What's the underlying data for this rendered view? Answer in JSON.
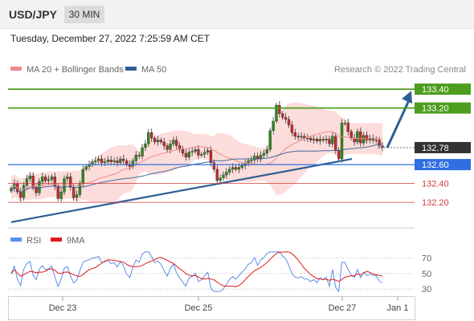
{
  "header": {
    "symbol": "USD/JPY",
    "timeframe": "30 MIN",
    "datetime": "Tuesday, December 27, 2022 7:25:59 AM CET"
  },
  "main_legend": [
    {
      "name": "MA 20 + Bollinger Bands",
      "color": "#f08a8a"
    },
    {
      "name": "MA 50",
      "color": "#2f5e96"
    }
  ],
  "credit": "Research © 2022 Trading Central",
  "rsi_legend": [
    {
      "name": "RSI",
      "color": "#5b8ee6"
    },
    {
      "name": "9MA",
      "color": "#e01a1a"
    }
  ],
  "chart_data": [
    {
      "type": "candlestick",
      "ylim": [
        131.92,
        133.52
      ],
      "x_ticks": [
        "Dec 23",
        "Dec 25",
        "Dec 27",
        "Jan 1"
      ],
      "levels": [
        {
          "value": 133.4,
          "label": "133.40",
          "kind": "resistance",
          "color": "#4e9d1e"
        },
        {
          "value": 133.2,
          "label": "133.20",
          "kind": "resistance",
          "color": "#4e9d1e"
        },
        {
          "value": 132.78,
          "label": "132.78",
          "kind": "last-price",
          "color": "#333333"
        },
        {
          "value": 132.6,
          "label": "132.60",
          "kind": "pivot",
          "color": "#2f6fe0"
        },
        {
          "value": 132.4,
          "label": "132.40",
          "kind": "support",
          "color": "#d23b3b"
        },
        {
          "value": 132.2,
          "label": "132.20",
          "kind": "support",
          "color": "#d23b3b"
        }
      ],
      "trendline": {
        "color": "#2f5e96",
        "from": 131.99,
        "to": 132.66
      },
      "projection": {
        "color": "#2f5e96",
        "from": 132.78,
        "to": 133.4
      },
      "close": [
        132.35,
        132.4,
        132.31,
        132.25,
        132.38,
        132.45,
        132.48,
        132.36,
        132.3,
        132.42,
        132.47,
        132.43,
        132.44,
        132.47,
        132.37,
        132.24,
        132.31,
        132.45,
        132.47,
        132.36,
        132.25,
        132.28,
        132.4,
        132.55,
        132.58,
        132.6,
        132.63,
        132.64,
        132.66,
        132.62,
        132.63,
        132.65,
        132.63,
        132.64,
        132.62,
        132.66,
        132.64,
        132.6,
        132.58,
        132.64,
        132.7,
        132.69,
        132.78,
        132.82,
        132.94,
        132.88,
        132.84,
        132.86,
        132.84,
        132.8,
        132.76,
        132.82,
        132.86,
        132.8,
        132.76,
        132.72,
        132.68,
        132.73,
        132.74,
        132.76,
        132.7,
        132.71,
        132.73,
        132.75,
        132.62,
        132.55,
        132.43,
        132.46,
        132.49,
        132.52,
        132.55,
        132.57,
        132.55,
        132.57,
        132.59,
        132.61,
        132.64,
        132.65,
        132.69,
        132.66,
        132.7,
        132.72,
        132.76,
        132.96,
        133.06,
        133.23,
        133.14,
        133.1,
        133.08,
        133.02,
        132.94,
        132.9,
        132.89,
        132.9,
        132.88,
        132.88,
        132.86,
        132.87,
        132.85,
        132.87,
        132.86,
        132.87,
        132.82,
        132.9,
        132.75,
        132.66,
        133.04,
        133.04,
        132.95,
        132.88,
        132.84,
        132.95,
        132.83,
        132.91,
        132.86,
        132.88,
        132.86,
        132.86,
        132.8,
        132.78
      ]
    },
    {
      "type": "line",
      "title": "RSI",
      "y_ticks": [
        70,
        50,
        30
      ],
      "ylim": [
        25,
        80
      ]
    }
  ]
}
